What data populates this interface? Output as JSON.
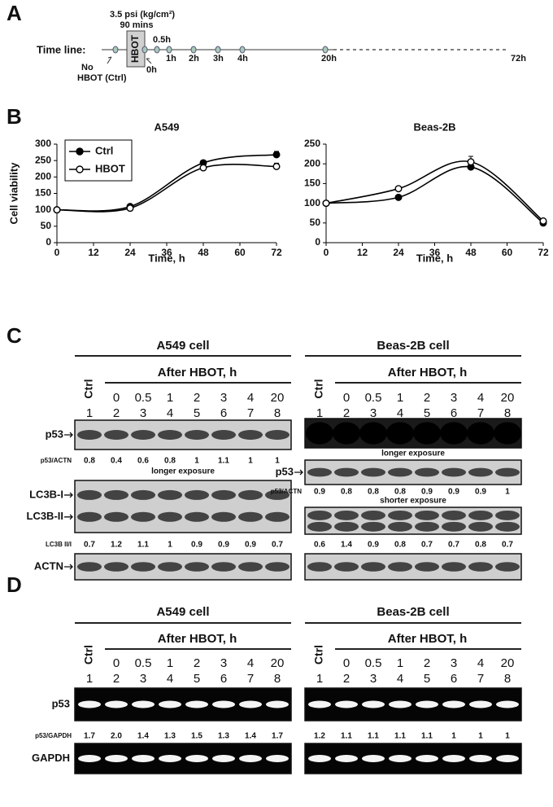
{
  "panels": {
    "a": {
      "label": "A",
      "timeline_label": "Time line:",
      "pressure": "3.5 psi (kg/cm²)",
      "duration": "90 mins",
      "treatment": "HBOT",
      "ctrl_label": [
        "No",
        "HBOT (Ctrl)"
      ],
      "start": "0h",
      "times": [
        "0.5h",
        "1h",
        "2h",
        "3h",
        "4h",
        "20h"
      ],
      "end": "72h"
    },
    "b": {
      "label": "B"
    },
    "c": {
      "label": "C",
      "blocks": [
        {
          "title": "A549 cell",
          "ctrl": "Ctrl",
          "after": "After HBOT, h",
          "times": [
            "0",
            "0.5",
            "1",
            "2",
            "3",
            "4",
            "20"
          ],
          "lanes": [
            1,
            2,
            3,
            4,
            5,
            6,
            7,
            8
          ],
          "blots": [
            {
              "label": "p53",
              "ratio_label": "p53/ACTN",
              "ratios": [
                "0.8",
                "0.4",
                "0.6",
                "0.8",
                "1",
                "1.1",
                "1",
                "1"
              ],
              "note": "longer exposure"
            },
            {
              "labels": [
                "LC3B-I",
                "LC3B-II"
              ],
              "ratio_label": "LC3B II/I",
              "ratios": [
                "0.7",
                "1.2",
                "1.1",
                "1",
                "0.9",
                "0.9",
                "0.9",
                "0.7"
              ]
            },
            {
              "label": "ACTN"
            }
          ]
        },
        {
          "title": "Beas-2B cell",
          "ctrl": "Ctrl",
          "after": "After HBOT, h",
          "times": [
            "0",
            "0.5",
            "1",
            "2",
            "3",
            "4",
            "20"
          ],
          "lanes": [
            1,
            2,
            3,
            4,
            5,
            6,
            7,
            8
          ],
          "blots": [
            {
              "note": "longer exposure"
            },
            {
              "label": "p53",
              "ratio_label": "p53/ACTN",
              "ratios": [
                "0.9",
                "0.8",
                "0.8",
                "0.8",
                "0.9",
                "0.9",
                "0.9",
                "1"
              ],
              "note": "shorter exposure"
            },
            {
              "ratios": [
                "0.6",
                "1.4",
                "0.9",
                "0.8",
                "0.7",
                "0.7",
                "0.8",
                "0.7"
              ]
            },
            {}
          ]
        }
      ]
    },
    "d": {
      "label": "D",
      "blocks": [
        {
          "title": "A549 cell",
          "ctrl": "Ctrl",
          "after": "After HBOT, h",
          "times": [
            "0",
            "0.5",
            "1",
            "2",
            "3",
            "4",
            "20"
          ],
          "lanes": [
            1,
            2,
            3,
            4,
            5,
            6,
            7,
            8
          ],
          "blots": [
            {
              "label": "p53",
              "ratio_label": "p53/GAPDH",
              "ratios": [
                "1.7",
                "2.0",
                "1.4",
                "1.3",
                "1.5",
                "1.3",
                "1.4",
                "1.7"
              ]
            },
            {
              "label": "GAPDH"
            }
          ]
        },
        {
          "title": "Beas-2B cell",
          "ctrl": "Ctrl",
          "after": "After HBOT, h",
          "times": [
            "0",
            "0.5",
            "1",
            "2",
            "3",
            "4",
            "20"
          ],
          "lanes": [
            1,
            2,
            3,
            4,
            5,
            6,
            7,
            8
          ],
          "blots": [
            {
              "ratios": [
                "1.2",
                "1.1",
                "1.1",
                "1.1",
                "1.1",
                "1",
                "1",
                "1"
              ]
            },
            {}
          ]
        }
      ]
    }
  },
  "chart_data": [
    {
      "type": "line",
      "title": "A549",
      "x_label": "Time, h",
      "y_label": "Cell viability",
      "x": [
        0,
        24,
        48,
        72
      ],
      "series": [
        {
          "name": "Ctrl",
          "color": "#000000",
          "marker": "filled",
          "values": [
            100,
            110,
            243,
            268
          ],
          "errors": [
            0,
            3,
            3,
            10
          ]
        },
        {
          "name": "HBOT",
          "color": "#000000",
          "marker": "open",
          "values": [
            100,
            105,
            228,
            232
          ],
          "errors": [
            0,
            3,
            3,
            10
          ]
        }
      ],
      "xlim": [
        0,
        72
      ],
      "xticks": [
        0,
        12,
        24,
        36,
        48,
        60,
        72
      ],
      "ylim": [
        0,
        300
      ],
      "yticks": [
        0,
        50,
        100,
        150,
        200,
        250,
        300
      ],
      "legend": "upper left"
    },
    {
      "type": "line",
      "title": "Beas-2B",
      "x_label": "Time, h",
      "x": [
        0,
        24,
        48,
        72
      ],
      "series": [
        {
          "color": "#000000",
          "marker": "filled",
          "values": [
            100,
            115,
            192,
            50
          ],
          "errors": [
            0,
            5,
            5,
            3
          ]
        },
        {
          "color": "#000000",
          "marker": "open",
          "values": [
            100,
            137,
            205,
            55
          ],
          "errors": [
            0,
            3,
            14,
            3
          ]
        }
      ],
      "xlim": [
        0,
        72
      ],
      "xticks": [
        0,
        12,
        24,
        36,
        48,
        60,
        72
      ],
      "ylim": [
        0,
        250
      ],
      "yticks": [
        0,
        50,
        100,
        150,
        200,
        250
      ]
    }
  ]
}
